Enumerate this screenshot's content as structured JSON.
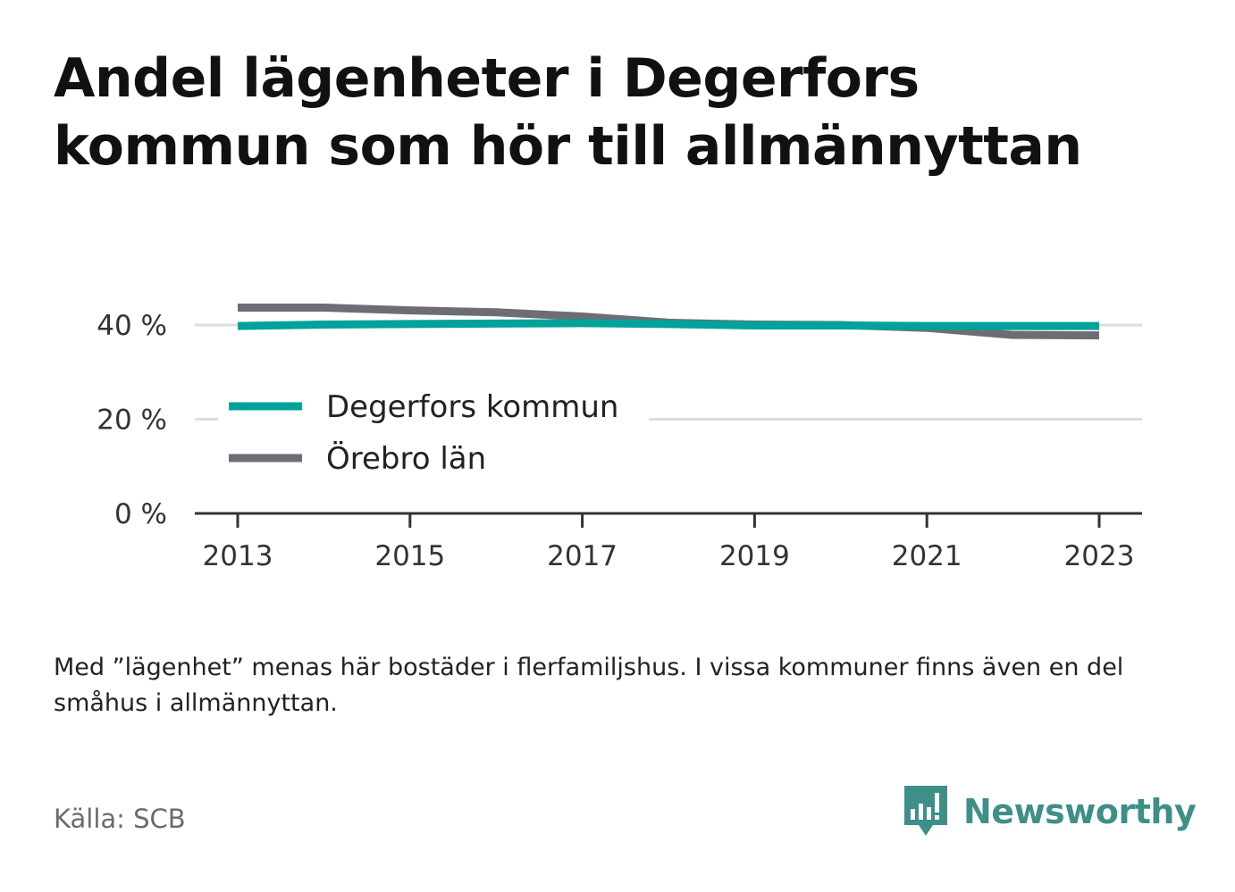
{
  "title": "Andel lägenheter i Degerfors kommun som hör till allmännyttan",
  "note": "Med ”lägenhet” menas här bostäder i flerfamiljshus. I vissa kommuner finns även en del småhus i allmännyttan.",
  "source": "Källa: SCB",
  "brand": {
    "name": "Newsworthy",
    "icon": "newsworthy-logo-icon",
    "color": "#3f8f89"
  },
  "chart_data": {
    "type": "line",
    "title": "Andel lägenheter i Degerfors kommun som hör till allmännyttan",
    "x": [
      2013,
      2014,
      2015,
      2016,
      2017,
      2018,
      2019,
      2020,
      2021,
      2022,
      2023
    ],
    "x_ticks": [
      "2013",
      "2015",
      "2017",
      "2019",
      "2021",
      "2023"
    ],
    "y_ticks": [
      "0 %",
      "20 %",
      "40 %"
    ],
    "y_tick_values": [
      0,
      20,
      40
    ],
    "ylim": [
      0,
      50
    ],
    "grid": true,
    "legend_position": "left-middle",
    "series": [
      {
        "name": "Degerfors kommun",
        "color": "#00a29a",
        "values": [
          39.8,
          40.1,
          40.2,
          40.3,
          40.4,
          40.2,
          39.9,
          39.9,
          39.8,
          39.8,
          39.8
        ]
      },
      {
        "name": "Örebro län",
        "color": "#6e6d76",
        "values": [
          43.7,
          43.7,
          43.1,
          42.7,
          41.8,
          40.5,
          40.1,
          40.0,
          39.4,
          37.9,
          37.8
        ]
      }
    ]
  }
}
